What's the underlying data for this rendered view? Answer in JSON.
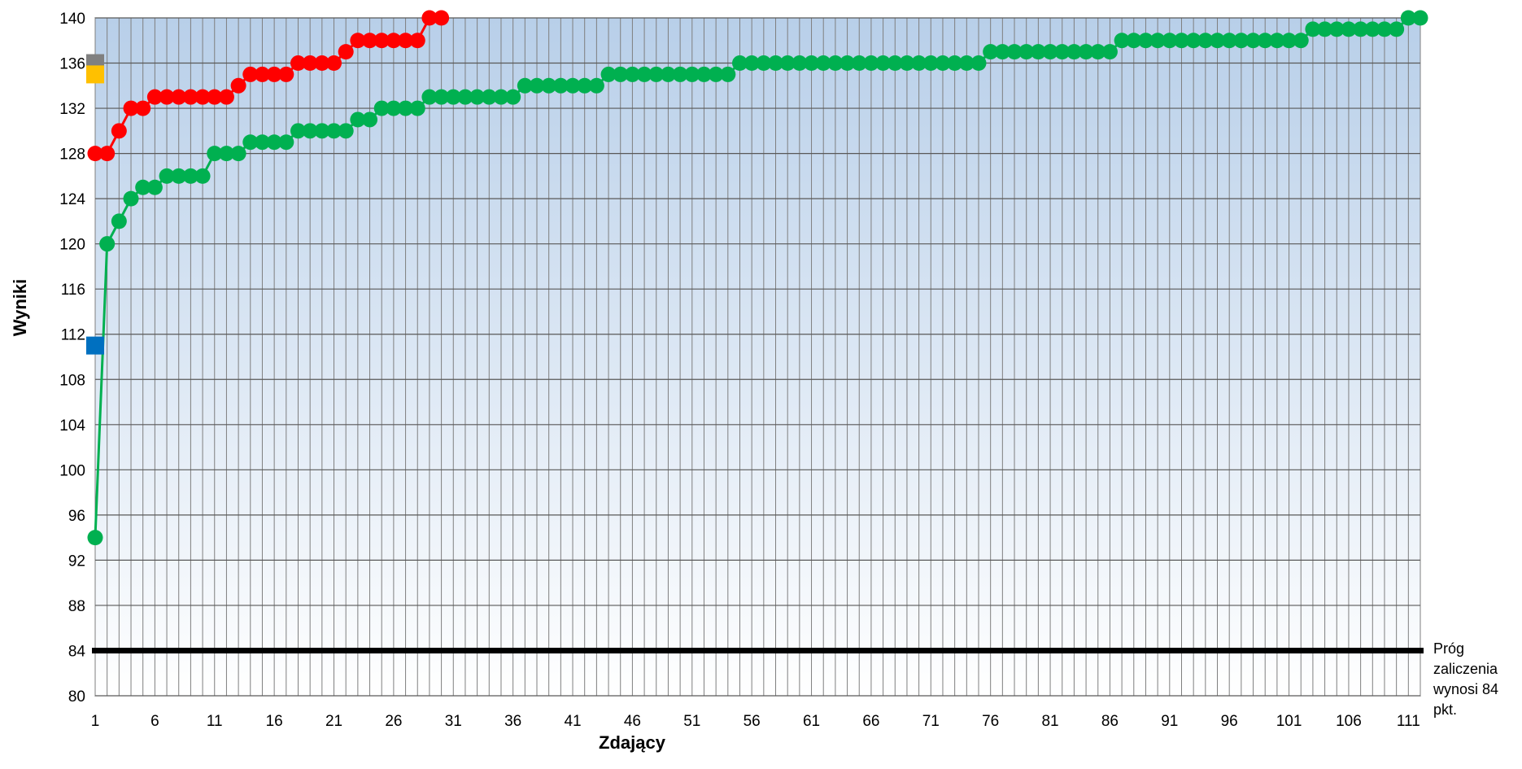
{
  "chart_data": {
    "type": "line",
    "xlabel": "Zdający",
    "ylabel": "Wyniki",
    "xlim": [
      1,
      112
    ],
    "ylim": [
      80,
      140
    ],
    "y_ticks": [
      80,
      84,
      88,
      92,
      96,
      100,
      104,
      108,
      112,
      116,
      120,
      124,
      128,
      132,
      136,
      140
    ],
    "x_ticks": [
      1,
      6,
      11,
      16,
      21,
      26,
      31,
      36,
      41,
      46,
      51,
      56,
      61,
      66,
      71,
      76,
      81,
      86,
      91,
      96,
      101,
      106,
      111
    ],
    "grid": true,
    "threshold": {
      "value": 84,
      "label_lines": [
        "Próg",
        "zaliczenia",
        "wynosi 84",
        "pkt."
      ],
      "color": "#000000"
    },
    "series": [
      {
        "color": "#ff0000",
        "x": [
          1,
          2,
          3,
          4,
          5,
          6,
          7,
          8,
          9,
          10,
          11,
          12,
          13,
          14,
          15,
          16,
          17,
          18,
          19,
          20,
          21,
          22,
          23,
          24,
          25,
          26,
          27,
          28,
          29,
          30
        ],
        "values": [
          128,
          128,
          130,
          132,
          132,
          133,
          133,
          133,
          133,
          133,
          133,
          133,
          134,
          135,
          135,
          135,
          135,
          136,
          136,
          136,
          136,
          137,
          138,
          138,
          138,
          138,
          138,
          138,
          140,
          140
        ]
      },
      {
        "color": "#00b050",
        "x": [
          1,
          2,
          3,
          4,
          5,
          6,
          7,
          8,
          9,
          10,
          11,
          12,
          13,
          14,
          15,
          16,
          17,
          18,
          19,
          20,
          21,
          22,
          23,
          24,
          25,
          26,
          27,
          28,
          29,
          30,
          31,
          32,
          33,
          34,
          35,
          36,
          37,
          38,
          39,
          40,
          41,
          42,
          43,
          44,
          45,
          46,
          47,
          48,
          49,
          50,
          51,
          52,
          53,
          54,
          55,
          56,
          57,
          58,
          59,
          60,
          61,
          62,
          63,
          64,
          65,
          66,
          67,
          68,
          69,
          70,
          71,
          72,
          73,
          74,
          75,
          76,
          77,
          78,
          79,
          80,
          81,
          82,
          83,
          84,
          85,
          86,
          87,
          88,
          89,
          90,
          91,
          92,
          93,
          94,
          95,
          96,
          97,
          98,
          99,
          100,
          101,
          102,
          103,
          104,
          105,
          106,
          107,
          108,
          109,
          110,
          111,
          112
        ],
        "values": [
          94,
          120,
          122,
          124,
          125,
          125,
          126,
          126,
          126,
          126,
          128,
          128,
          128,
          129,
          129,
          129,
          129,
          130,
          130,
          130,
          130,
          130,
          131,
          131,
          132,
          132,
          132,
          132,
          133,
          133,
          133,
          133,
          133,
          133,
          133,
          133,
          134,
          134,
          134,
          134,
          134,
          134,
          134,
          135,
          135,
          135,
          135,
          135,
          135,
          135,
          135,
          135,
          135,
          135,
          136,
          136,
          136,
          136,
          136,
          136,
          136,
          136,
          136,
          136,
          136,
          136,
          136,
          136,
          136,
          136,
          136,
          136,
          136,
          136,
          136,
          137,
          137,
          137,
          137,
          137,
          137,
          137,
          137,
          137,
          137,
          137,
          138,
          138,
          138,
          138,
          138,
          138,
          138,
          138,
          138,
          138,
          138,
          138,
          138,
          138,
          138,
          138,
          139,
          139,
          139,
          139,
          139,
          139,
          139,
          139,
          140,
          140
        ]
      }
    ],
    "markers": [
      {
        "x": 1,
        "y": 136,
        "color": "#808080"
      },
      {
        "x": 1,
        "y": 135,
        "color": "#ffc000"
      },
      {
        "x": 1,
        "y": 111,
        "color": "#0070c0"
      }
    ]
  }
}
